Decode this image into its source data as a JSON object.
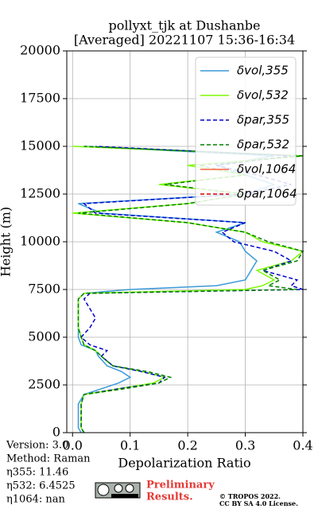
{
  "chart_data": {
    "type": "line",
    "title": "pollyxt_tjk at Dushanbe",
    "subtitle": "[Averaged] 20221107 15:36-16:34",
    "xlabel": "Depolarization Ratio",
    "ylabel": "Height (m)",
    "xlim": [
      -0.01,
      0.4
    ],
    "ylim": [
      0,
      20000
    ],
    "xticks": [
      {
        "value": 0,
        "label": "0.0"
      },
      0.1,
      0.2,
      0.3,
      0.4
    ],
    "yticks": [
      0,
      2500,
      5000,
      7500,
      10000,
      12500,
      15000,
      17500,
      20000
    ],
    "grid": true,
    "legend": "upper right",
    "y": [
      0,
      250,
      500,
      1000,
      1500,
      2000,
      2300,
      2600,
      2900,
      3200,
      3500,
      4000,
      4300,
      4600,
      5000,
      5500,
      6000,
      6500,
      7000,
      7300,
      7500,
      7700,
      8000,
      8500,
      9000,
      9500,
      10000,
      10500,
      11000,
      11500,
      12000,
      12500,
      13000,
      13500,
      14000,
      14500,
      15000
    ],
    "series": [
      {
        "name": "δvol,355",
        "color": "#3a9ad9",
        "dash": false,
        "values": [
          0.015,
          0.01,
          0.01,
          0.01,
          0.01,
          0.02,
          0.05,
          0.08,
          0.1,
          0.085,
          0.06,
          0.045,
          0.04,
          0.015,
          0.01,
          0.01,
          0.01,
          0.01,
          0.01,
          0.02,
          0.1,
          0.25,
          0.3,
          0.31,
          0.32,
          0.3,
          0.29,
          0.25,
          0.3,
          0.05,
          0.01,
          0.3,
          0.35,
          0.3,
          0.25,
          0.35,
          0.02
        ]
      },
      {
        "name": "δvol,532",
        "color": "#7cfc00",
        "dash": false,
        "values": [
          0.02,
          0.015,
          0.015,
          0.015,
          0.015,
          0.02,
          0.08,
          0.14,
          0.16,
          0.12,
          0.07,
          0.05,
          0.04,
          0.02,
          0.015,
          0.01,
          0.01,
          0.01,
          0.01,
          0.02,
          0.3,
          0.33,
          0.35,
          0.32,
          0.38,
          0.4,
          0.33,
          0.3,
          0.2,
          0.0,
          0.2,
          0.3,
          0.15,
          0.3,
          0.2,
          0.4,
          0.0
        ]
      },
      {
        "name": "δpar,355",
        "color": "#0000cd",
        "dash": true,
        "values": [
          0.02,
          0.015,
          0.015,
          0.015,
          0.015,
          0.02,
          0.08,
          0.15,
          0.16,
          0.12,
          0.07,
          0.05,
          0.06,
          0.03,
          0.015,
          0.03,
          0.04,
          0.03,
          0.02,
          0.03,
          0.4,
          0.38,
          0.39,
          0.33,
          0.38,
          0.35,
          0.28,
          0.26,
          0.3,
          0.04,
          0.02,
          0.3,
          0.38,
          0.32,
          0.25,
          0.38,
          0.04
        ]
      },
      {
        "name": "δpar,532",
        "color": "#008000",
        "dash": true,
        "values": [
          0.02,
          0.015,
          0.015,
          0.015,
          0.015,
          0.02,
          0.09,
          0.15,
          0.17,
          0.13,
          0.07,
          0.05,
          0.04,
          0.02,
          0.015,
          0.01,
          0.01,
          0.01,
          0.01,
          0.02,
          0.39,
          0.34,
          0.36,
          0.33,
          0.39,
          0.4,
          0.34,
          0.3,
          0.2,
          0.01,
          0.2,
          0.3,
          0.16,
          0.3,
          0.22,
          0.4,
          0.02
        ]
      },
      {
        "name": "δvol,1064",
        "color": "#ff6347",
        "dash": false,
        "values": [
          null,
          null,
          null,
          null,
          null,
          null,
          null,
          null,
          null,
          null,
          null,
          null,
          null,
          null,
          null,
          null,
          null,
          null,
          null,
          null,
          null,
          null,
          null,
          null,
          null,
          null,
          null,
          null,
          null,
          null,
          null,
          null,
          null,
          null,
          null,
          null,
          null
        ]
      },
      {
        "name": "δpar,1064",
        "color": "#cc0000",
        "dash": true,
        "values": [
          null,
          null,
          null,
          null,
          null,
          null,
          null,
          null,
          null,
          null,
          null,
          null,
          null,
          null,
          null,
          null,
          null,
          null,
          null,
          null,
          null,
          null,
          null,
          null,
          null,
          null,
          null,
          null,
          null,
          null,
          null,
          null,
          null,
          null,
          null,
          null,
          null
        ]
      }
    ],
    "info": [
      "Version: 3.0",
      "Method: Raman",
      "η355:  11.46",
      "η532: 6.4525",
      "η1064:    nan"
    ],
    "notice": [
      "Preliminary",
      "Results."
    ],
    "copyright": [
      "© TROPOS 2022.",
      "CC BY SA 4.0 License."
    ]
  }
}
